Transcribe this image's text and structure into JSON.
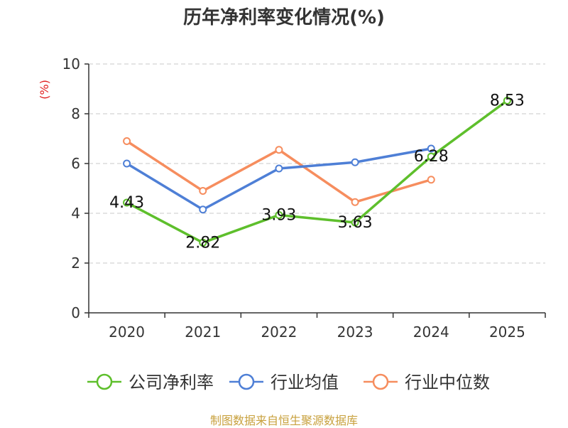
{
  "chart_data": {
    "type": "line",
    "title": "历年净利率变化情况(%)",
    "ylabel": "(%)",
    "categories": [
      "2020",
      "2021",
      "2022",
      "2023",
      "2024",
      "2025"
    ],
    "ylim": [
      0,
      10
    ],
    "yticks": [
      0,
      2,
      4,
      6,
      8,
      10
    ],
    "grid": true,
    "legend_position": "bottom",
    "series": [
      {
        "name": "公司净利率",
        "color": "#5ebf2c",
        "values": [
          4.43,
          2.82,
          3.93,
          3.63,
          6.28,
          8.53
        ],
        "labels": [
          "4.43",
          "2.82",
          "3.93",
          "3.63",
          "6.28",
          "8.53"
        ]
      },
      {
        "name": "行业均值",
        "color": "#4e7fd6",
        "values": [
          6.0,
          4.15,
          5.8,
          6.05,
          6.6,
          null
        ]
      },
      {
        "name": "行业中位数",
        "color": "#f68d5e",
        "values": [
          6.9,
          4.9,
          6.55,
          4.45,
          5.35,
          null
        ]
      }
    ]
  },
  "source": "制图数据来自恒生聚源数据库"
}
